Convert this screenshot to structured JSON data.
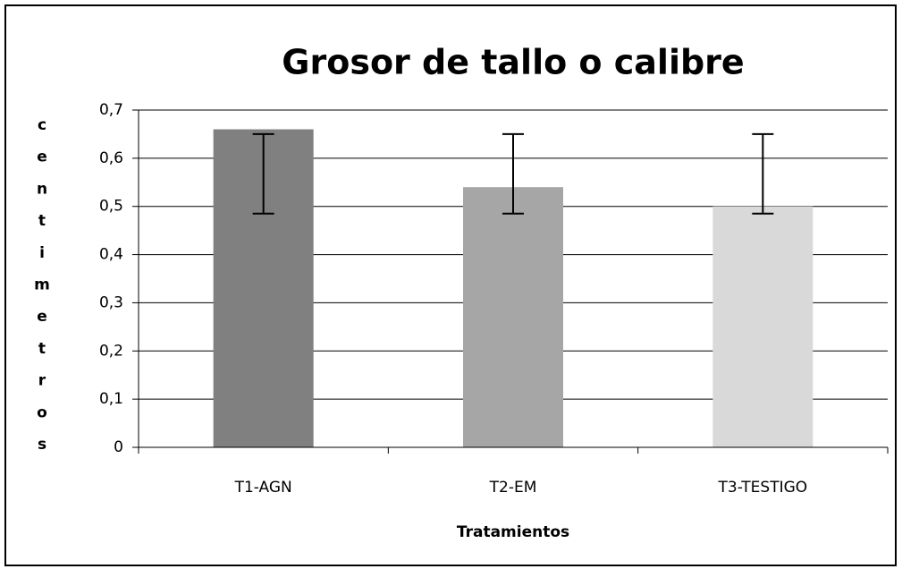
{
  "chart_data": {
    "type": "bar",
    "title": "Grosor de tallo o calibre",
    "xlabel": "Tratamientos",
    "ylabel": "centimetros",
    "categories": [
      "T1-AGN",
      "T2-EM",
      "T3-TESTIGO"
    ],
    "values": [
      0.66,
      0.54,
      0.5
    ],
    "colors": [
      "#808080",
      "#a6a6a6",
      "#d9d9d9"
    ],
    "error_low": [
      0.485,
      0.485,
      0.485
    ],
    "error_high": [
      0.65,
      0.65,
      0.65
    ],
    "ylim": [
      0,
      0.7
    ],
    "yticks": [
      0,
      {
        "value": 0.1,
        "label": "0,1"
      },
      {
        "value": 0.2,
        "label": "0,2"
      },
      {
        "value": 0.3,
        "label": "0,3"
      },
      {
        "value": 0.4,
        "label": "0,4"
      },
      {
        "value": 0.5,
        "label": "0,5"
      },
      {
        "value": 0.6,
        "label": "0,6"
      },
      {
        "value": 0.7,
        "label": "0,7"
      }
    ],
    "grid": true
  }
}
